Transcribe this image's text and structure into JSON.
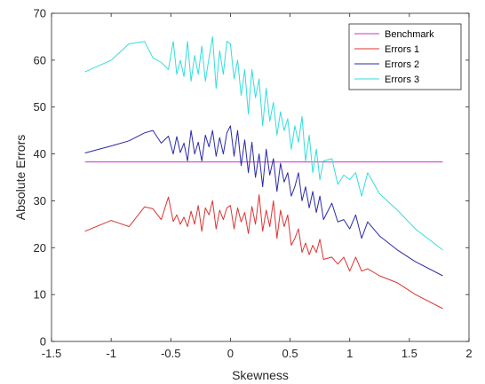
{
  "chart_data": {
    "type": "line",
    "xlabel": "Skewness",
    "ylabel": "Absolute Errors",
    "xlim": [
      -1.5,
      2
    ],
    "ylim": [
      0,
      70
    ],
    "xticks": [
      -1.5,
      -1,
      -0.5,
      0,
      0.5,
      1,
      1.5,
      2
    ],
    "xtick_labels": [
      "-1.5",
      "-1",
      "-0.5",
      "0",
      "0.5",
      "1",
      "1.5",
      "2"
    ],
    "yticks": [
      0,
      10,
      20,
      30,
      40,
      50,
      60,
      70
    ],
    "ytick_labels": [
      "0",
      "10",
      "20",
      "30",
      "40",
      "50",
      "60",
      "70"
    ],
    "grid": false,
    "legend_position": "top-right",
    "series": [
      {
        "name": "Benchmark",
        "color": "#cc33cc",
        "x": [
          -1.22,
          1.78
        ],
        "y": [
          38.3,
          38.3
        ]
      },
      {
        "name": "Errors 1",
        "color": "#dd3333",
        "x": [
          -1.22,
          -1.0,
          -0.85,
          -0.72,
          -0.65,
          -0.58,
          -0.52,
          -0.48,
          -0.45,
          -0.42,
          -0.39,
          -0.36,
          -0.33,
          -0.3,
          -0.27,
          -0.24,
          -0.21,
          -0.18,
          -0.15,
          -0.12,
          -0.09,
          -0.06,
          -0.03,
          0.0,
          0.03,
          0.06,
          0.09,
          0.12,
          0.15,
          0.18,
          0.21,
          0.24,
          0.27,
          0.3,
          0.33,
          0.36,
          0.39,
          0.42,
          0.45,
          0.48,
          0.51,
          0.54,
          0.57,
          0.6,
          0.63,
          0.66,
          0.69,
          0.72,
          0.75,
          0.78,
          0.85,
          0.9,
          0.95,
          1.0,
          1.05,
          1.1,
          1.15,
          1.25,
          1.4,
          1.55,
          1.78
        ],
        "y": [
          23.5,
          25.8,
          24.5,
          28.7,
          28.3,
          26.0,
          30.8,
          25.6,
          27.0,
          25.0,
          26.5,
          24.5,
          27.8,
          25.0,
          29.0,
          23.5,
          28.5,
          27.0,
          30.0,
          24.0,
          28.0,
          26.0,
          28.5,
          29.0,
          24.0,
          28.5,
          25.5,
          27.5,
          23.0,
          28.8,
          25.0,
          31.3,
          23.5,
          28.0,
          24.5,
          30.0,
          22.0,
          28.0,
          24.5,
          27.0,
          20.5,
          22.0,
          24.0,
          19.0,
          21.0,
          18.5,
          20.5,
          19.0,
          21.8,
          17.5,
          18.0,
          16.5,
          18.0,
          15.0,
          18.0,
          15.0,
          15.5,
          14.0,
          12.5,
          10.0,
          7.0
        ]
      },
      {
        "name": "Errors 2",
        "color": "#2a2aa8",
        "x": [
          -1.22,
          -1.0,
          -0.85,
          -0.72,
          -0.65,
          -0.58,
          -0.52,
          -0.48,
          -0.45,
          -0.42,
          -0.39,
          -0.36,
          -0.33,
          -0.3,
          -0.27,
          -0.24,
          -0.21,
          -0.18,
          -0.15,
          -0.12,
          -0.09,
          -0.06,
          -0.03,
          0.0,
          0.03,
          0.06,
          0.09,
          0.12,
          0.15,
          0.18,
          0.21,
          0.24,
          0.27,
          0.3,
          0.33,
          0.36,
          0.39,
          0.42,
          0.45,
          0.48,
          0.51,
          0.54,
          0.57,
          0.6,
          0.63,
          0.66,
          0.69,
          0.72,
          0.75,
          0.78,
          0.85,
          0.9,
          0.95,
          1.0,
          1.05,
          1.1,
          1.15,
          1.25,
          1.4,
          1.55,
          1.78
        ],
        "y": [
          40.2,
          41.7,
          42.8,
          44.5,
          45.0,
          42.3,
          43.8,
          40.0,
          43.7,
          40.3,
          42.3,
          38.5,
          45.0,
          40.0,
          42.5,
          38.5,
          44.0,
          41.5,
          45.0,
          39.5,
          43.5,
          40.0,
          44.5,
          46.0,
          39.5,
          45.0,
          37.5,
          43.0,
          36.0,
          42.5,
          35.0,
          40.0,
          33.0,
          41.0,
          35.5,
          39.0,
          32.0,
          38.0,
          34.0,
          36.0,
          31.0,
          33.0,
          36.0,
          30.0,
          33.0,
          28.5,
          32.0,
          27.5,
          31.0,
          26.0,
          29.5,
          25.5,
          26.0,
          24.0,
          27.0,
          22.0,
          25.5,
          22.5,
          19.5,
          17.0,
          14.0
        ]
      },
      {
        "name": "Errors 3",
        "color": "#33dddd",
        "x": [
          -1.22,
          -1.0,
          -0.85,
          -0.72,
          -0.65,
          -0.58,
          -0.52,
          -0.48,
          -0.45,
          -0.42,
          -0.39,
          -0.36,
          -0.33,
          -0.3,
          -0.27,
          -0.24,
          -0.21,
          -0.18,
          -0.15,
          -0.12,
          -0.09,
          -0.06,
          -0.03,
          0.0,
          0.03,
          0.06,
          0.09,
          0.12,
          0.15,
          0.18,
          0.21,
          0.24,
          0.27,
          0.3,
          0.33,
          0.36,
          0.39,
          0.42,
          0.45,
          0.48,
          0.51,
          0.54,
          0.57,
          0.6,
          0.63,
          0.66,
          0.69,
          0.72,
          0.75,
          0.78,
          0.85,
          0.9,
          0.95,
          1.0,
          1.05,
          1.1,
          1.15,
          1.25,
          1.4,
          1.55,
          1.78
        ],
        "y": [
          57.5,
          60.0,
          63.5,
          64.0,
          60.5,
          59.5,
          58.0,
          64.0,
          57.0,
          60.0,
          56.5,
          64.0,
          55.5,
          61.0,
          57.0,
          63.0,
          55.5,
          60.5,
          65.0,
          54.0,
          62.0,
          57.0,
          64.0,
          63.5,
          56.0,
          60.0,
          52.5,
          58.0,
          48.5,
          58.0,
          52.0,
          56.0,
          46.0,
          54.0,
          47.0,
          51.0,
          44.0,
          49.0,
          45.0,
          47.5,
          41.0,
          46.0,
          42.5,
          48.0,
          38.5,
          44.0,
          36.0,
          41.0,
          34.5,
          38.5,
          39.0,
          33.5,
          35.5,
          34.5,
          36.0,
          31.0,
          36.0,
          31.5,
          28.0,
          24.0,
          19.5
        ]
      }
    ]
  }
}
